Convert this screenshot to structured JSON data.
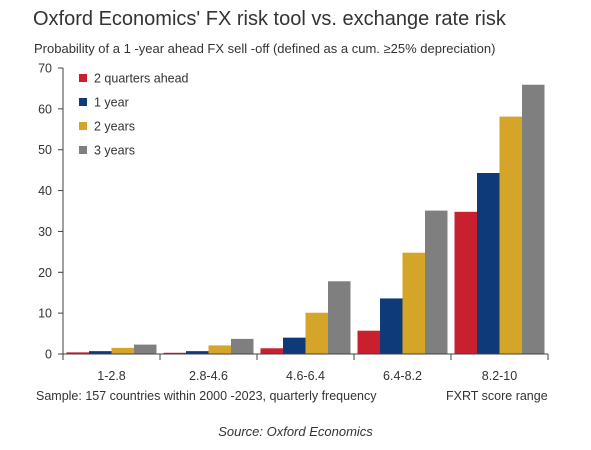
{
  "chart_data": {
    "type": "bar",
    "title": "Oxford Economics' FX risk tool vs. exchange rate risk",
    "subtitle": "Probability of a 1 -year ahead  FX sell -off (defined as a cum.   ≥25% depreciation)",
    "xlabel": "FXRT score range",
    "ylabel": "",
    "ylim": [
      0,
      70
    ],
    "yticks": [
      0,
      10,
      20,
      30,
      40,
      50,
      60,
      70
    ],
    "categories": [
      "1-2.8",
      "2.8-4.6",
      "4.6-6.4",
      "6.4-8.2",
      "8.2-10"
    ],
    "series": [
      {
        "name": "2 quarters ahead",
        "color": "#c8202f",
        "values": [
          0.4,
          0.3,
          1.4,
          5.7,
          34.8
        ]
      },
      {
        "name": "1 year",
        "color": "#0e3a7a",
        "values": [
          0.7,
          0.7,
          4.0,
          13.6,
          44.3
        ]
      },
      {
        "name": "2 years",
        "color": "#d4a528",
        "values": [
          1.5,
          2.1,
          10.1,
          24.8,
          58.1
        ]
      },
      {
        "name": "3 years",
        "color": "#7f7f7f",
        "values": [
          2.3,
          3.7,
          17.8,
          35.1,
          65.9
        ]
      }
    ],
    "legend_position": "top-left",
    "grid": false
  },
  "footer": {
    "sample_note": "Sample: 157  countries within 2000 -2023, quarterly frequency",
    "source": "Source: Oxford Economics"
  }
}
